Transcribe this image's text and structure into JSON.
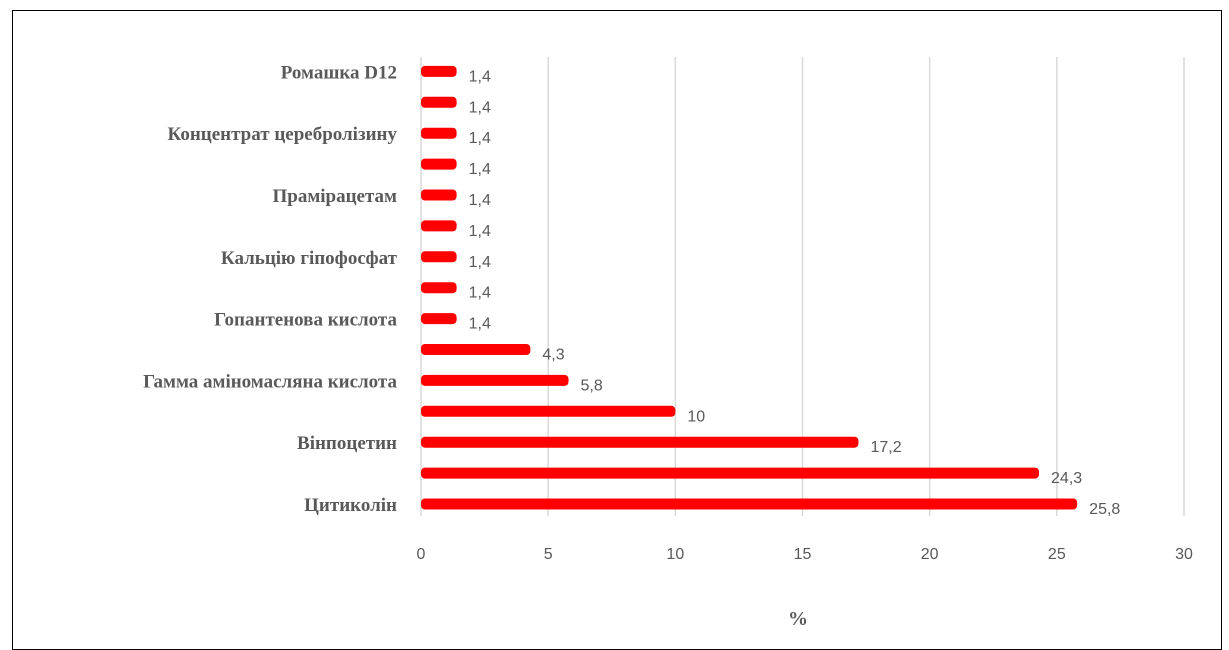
{
  "chart_data": {
    "type": "bar",
    "orientation": "horizontal",
    "categories": [
      "Цитиколін",
      "",
      "Вінпоцетин",
      "",
      "Гамма аміномасляна кислота",
      "",
      "Гопантенова кислота",
      "",
      "Кальцію гіпофосфат",
      "",
      "Прамірацетам",
      "",
      "Концентрат церебролізину",
      "",
      "Ромашка D12"
    ],
    "values": [
      25.8,
      24.3,
      17.2,
      10,
      5.8,
      4.3,
      1.4,
      1.4,
      1.4,
      1.4,
      1.4,
      1.4,
      1.4,
      1.4,
      1.4
    ],
    "data_labels": [
      "25,8",
      "24,3",
      "17,2",
      "10",
      "5,8",
      "4,3",
      "1,4",
      "1,4",
      "1,4",
      "1,4",
      "1,4",
      "1,4",
      "1,4",
      "1,4",
      "1,4"
    ],
    "xlim": [
      0,
      30
    ],
    "x_ticks": [
      0,
      5,
      10,
      15,
      20,
      25,
      30
    ],
    "xlabel": "%",
    "ylabel": "",
    "title": "",
    "grid": "vertical",
    "legend": "none",
    "bar_color": "#ff0000",
    "grid_color": "#d9d9d9",
    "text_color": "#595959"
  }
}
